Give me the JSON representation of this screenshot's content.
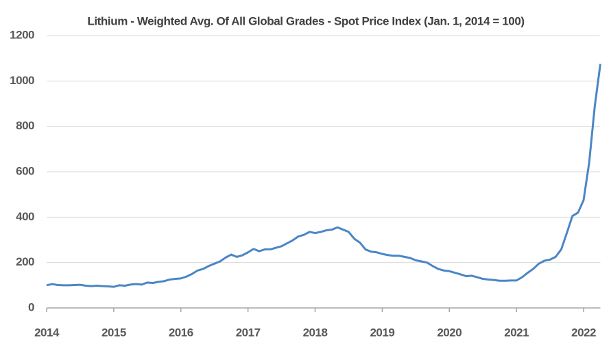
{
  "chart_data": {
    "type": "line",
    "title": "Lithium - Weighted Avg. Of All Global Grades - Spot Price Index (Jan. 1, 2014 = 100)",
    "x": [
      2014,
      2014.083,
      2014.167,
      2014.25,
      2014.333,
      2014.417,
      2014.5,
      2014.583,
      2014.667,
      2014.75,
      2014.833,
      2014.917,
      2015,
      2015.083,
      2015.167,
      2015.25,
      2015.333,
      2015.417,
      2015.5,
      2015.583,
      2015.667,
      2015.75,
      2015.833,
      2015.917,
      2016,
      2016.083,
      2016.167,
      2016.25,
      2016.333,
      2016.417,
      2016.5,
      2016.583,
      2016.667,
      2016.75,
      2016.833,
      2016.917,
      2017,
      2017.083,
      2017.167,
      2017.25,
      2017.333,
      2017.417,
      2017.5,
      2017.583,
      2017.667,
      2017.75,
      2017.833,
      2017.917,
      2018,
      2018.083,
      2018.167,
      2018.25,
      2018.333,
      2018.417,
      2018.5,
      2018.583,
      2018.667,
      2018.75,
      2018.833,
      2018.917,
      2019,
      2019.083,
      2019.167,
      2019.25,
      2019.333,
      2019.417,
      2019.5,
      2019.583,
      2019.667,
      2019.75,
      2019.833,
      2019.917,
      2020,
      2020.083,
      2020.167,
      2020.25,
      2020.333,
      2020.417,
      2020.5,
      2020.583,
      2020.667,
      2020.75,
      2020.833,
      2020.917,
      2021,
      2021.083,
      2021.167,
      2021.25,
      2021.333,
      2021.417,
      2021.5,
      2021.583,
      2021.667,
      2021.75,
      2021.833,
      2021.917,
      2022,
      2022.083,
      2022.167,
      2022.25
    ],
    "series": [
      {
        "name": "Lithium Spot Price Index",
        "color": "#4a86c5",
        "values": [
          100,
          105,
          101,
          100,
          100,
          101,
          102,
          98,
          96,
          98,
          96,
          95,
          93,
          100,
          98,
          103,
          105,
          103,
          112,
          110,
          115,
          118,
          125,
          128,
          130,
          138,
          150,
          165,
          172,
          185,
          195,
          205,
          222,
          235,
          225,
          232,
          245,
          260,
          250,
          258,
          258,
          265,
          272,
          285,
          298,
          315,
          322,
          335,
          330,
          335,
          342,
          345,
          355,
          345,
          335,
          305,
          288,
          258,
          248,
          245,
          238,
          233,
          230,
          230,
          225,
          220,
          210,
          205,
          200,
          185,
          172,
          165,
          162,
          155,
          148,
          140,
          142,
          135,
          128,
          125,
          123,
          120,
          120,
          121,
          121,
          135,
          155,
          172,
          195,
          208,
          213,
          225,
          258,
          330,
          405,
          420,
          475,
          640,
          890,
          1075
        ]
      }
    ],
    "xlim": [
      2014,
      2022.25
    ],
    "xticks": [
      2014,
      2015,
      2016,
      2017,
      2018,
      2019,
      2020,
      2021,
      2022
    ],
    "ylim": [
      0,
      1200
    ],
    "yticks": [
      0,
      200,
      400,
      600,
      800,
      1000,
      1200
    ],
    "grid": true
  }
}
